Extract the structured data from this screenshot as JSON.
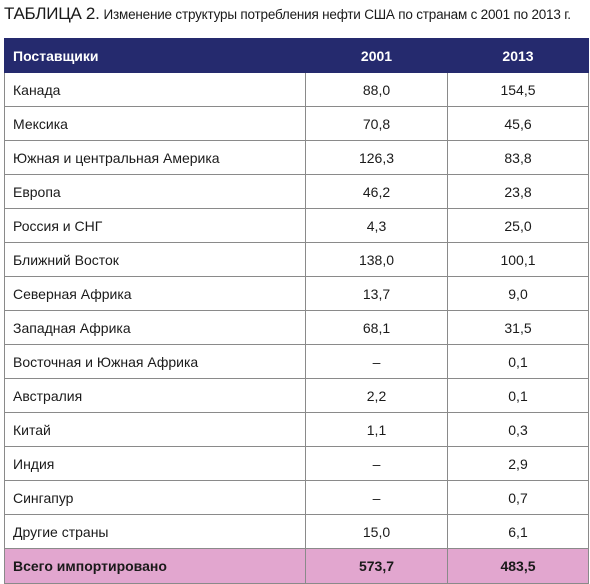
{
  "caption": {
    "label": "ТАБЛИЦА 2.",
    "text": "Изменение структуры потребления нефти США по странам с 2001 по 2013 г."
  },
  "header": {
    "name": "Поставщики",
    "y2001": "2001",
    "y2013": "2013"
  },
  "rows": [
    {
      "name": "Канада",
      "y2001": "88,0",
      "y2013": "154,5"
    },
    {
      "name": "Мексика",
      "y2001": "70,8",
      "y2013": "45,6"
    },
    {
      "name": "Южная и центральная Америка",
      "y2001": "126,3",
      "y2013": "83,8"
    },
    {
      "name": "Европа",
      "y2001": "46,2",
      "y2013": "23,8"
    },
    {
      "name": "Россия и СНГ",
      "y2001": "4,3",
      "y2013": "25,0"
    },
    {
      "name": "Ближний Восток",
      "y2001": "138,0",
      "y2013": "100,1"
    },
    {
      "name": "Северная Африка",
      "y2001": "13,7",
      "y2013": "9,0"
    },
    {
      "name": "Западная Африка",
      "y2001": "68,1",
      "y2013": "31,5"
    },
    {
      "name": "Восточная и Южная Африка",
      "y2001": "–",
      "y2013": "0,1"
    },
    {
      "name": "Австралия",
      "y2001": "2,2",
      "y2013": "0,1"
    },
    {
      "name": "Китай",
      "y2001": "1,1",
      "y2013": "0,3"
    },
    {
      "name": "Индия",
      "y2001": "–",
      "y2013": "2,9"
    },
    {
      "name": "Сингапур",
      "y2001": "–",
      "y2013": "0,7"
    },
    {
      "name": "Другие страны",
      "y2001": "15,0",
      "y2013": "6,1"
    }
  ],
  "total": {
    "name": "Всего импортировано",
    "y2001": "573,7",
    "y2013": "483,5"
  },
  "colors": {
    "header_bg": "#252a6e",
    "total_bg": "#e2a6cf"
  }
}
